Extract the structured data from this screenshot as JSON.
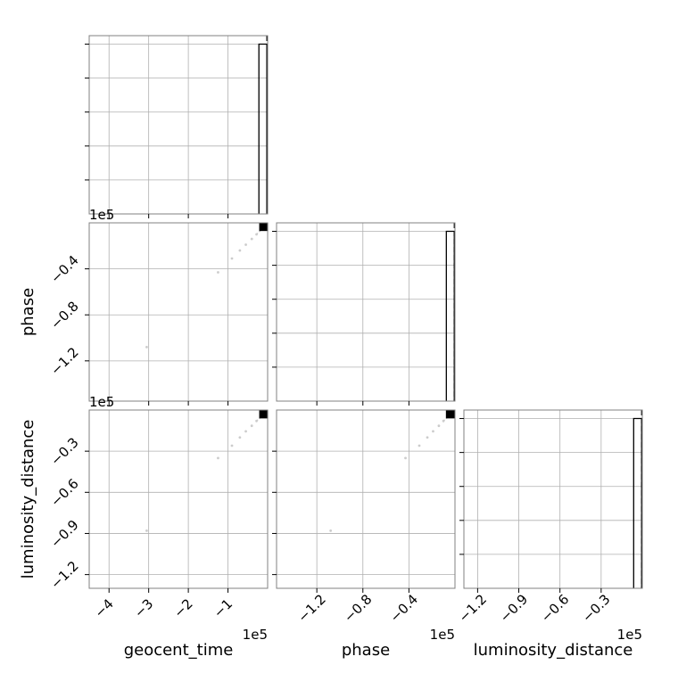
{
  "chart_data": {
    "type": "scatter",
    "description_kind": "corner plot",
    "parameters": [
      "geocent_time",
      "phase",
      "luminosity_distance"
    ],
    "colors": {
      "hist_line": "#000000",
      "grid": "#b0b0b0",
      "scatter": "#cccccc",
      "density_peak": "#000000",
      "axes_edge": "#808080"
    },
    "panels": [
      {
        "id": "hist-geocent_time",
        "kind": "histogram",
        "row": 0,
        "col": 0,
        "xlim": [
          -450000,
          0
        ],
        "ylim": [
          0,
          1.05
        ],
        "x_ticks": [
          -400000,
          -300000,
          -200000,
          -100000
        ],
        "y_ticks": [
          0.2,
          0.4,
          0.6,
          0.8,
          1.0
        ],
        "hist": {
          "edges": [
            -22000,
            -2000
          ],
          "heights": [
            1.0
          ]
        },
        "dashed_lines": [
          -2000
        ],
        "x_offset_label": "1e5",
        "show_x_ticklabels": false
      },
      {
        "id": "scatter-phase-vs-geocent_time",
        "kind": "scatter",
        "row": 1,
        "col": 0,
        "xlim": [
          -450000,
          0
        ],
        "ylim": [
          -155000,
          0
        ],
        "x_ticks": [
          -400000,
          -300000,
          -200000,
          -100000
        ],
        "y_ticks": [
          -40000,
          -80000,
          -120000
        ],
        "y_ticklabels": [
          "−0.4",
          "−0.8",
          "−1.2"
        ],
        "points": [
          [
            -305000,
            -108000
          ],
          [
            -125000,
            -43000
          ],
          [
            -90000,
            -31000
          ],
          [
            -70000,
            -24000
          ],
          [
            -55000,
            -19000
          ],
          [
            -40000,
            -14000
          ],
          [
            -28000,
            -10000
          ]
        ],
        "peak": [
          -10000,
          -4000
        ],
        "x_offset_label": "1e5",
        "show_x_ticklabels": false
      },
      {
        "id": "scatter-luminosity_distance-vs-geocent_time",
        "kind": "scatter",
        "row": 2,
        "col": 0,
        "xlim": [
          -450000,
          0
        ],
        "ylim": [
          -130000,
          0
        ],
        "x_ticks": [
          -400000,
          -300000,
          -200000,
          -100000
        ],
        "x_ticklabels": [
          "−4",
          "−3",
          "−2",
          "−1"
        ],
        "y_ticks": [
          -30000,
          -60000,
          -90000,
          -120000
        ],
        "y_ticklabels": [
          "−0.3",
          "−0.6",
          "−0.9",
          "−1.2"
        ],
        "points": [
          [
            -305000,
            -88000
          ],
          [
            -125000,
            -35000
          ],
          [
            -90000,
            -26000
          ],
          [
            -70000,
            -20000
          ],
          [
            -55000,
            -15500
          ],
          [
            -40000,
            -11500
          ],
          [
            -28000,
            -8000
          ]
        ],
        "peak": [
          -10000,
          -3500
        ],
        "x_offset_label": "1e5"
      },
      {
        "id": "hist-phase",
        "kind": "histogram",
        "row": 1,
        "col": 1,
        "xlim": [
          -155000,
          0
        ],
        "ylim": [
          0,
          1.05
        ],
        "x_ticks": [
          -120000,
          -80000,
          -40000
        ],
        "y_ticks": [
          0.2,
          0.4,
          0.6,
          0.8,
          1.0
        ],
        "hist": {
          "edges": [
            -7500,
            -600
          ],
          "heights": [
            1.0
          ]
        },
        "dashed_lines": [
          -600
        ],
        "show_x_ticklabels": false
      },
      {
        "id": "scatter-luminosity_distance-vs-phase",
        "kind": "scatter",
        "row": 2,
        "col": 1,
        "xlim": [
          -155000,
          0
        ],
        "ylim": [
          -130000,
          0
        ],
        "x_ticks": [
          -120000,
          -80000,
          -40000
        ],
        "x_ticklabels": [
          "−1.2",
          "−0.8",
          "−0.4"
        ],
        "y_ticks": [
          -30000,
          -60000,
          -90000,
          -120000
        ],
        "points": [
          [
            -108000,
            -88000
          ],
          [
            -43000,
            -35000
          ],
          [
            -31000,
            -26000
          ],
          [
            -24000,
            -20000
          ],
          [
            -19000,
            -15500
          ],
          [
            -14000,
            -11500
          ],
          [
            -10000,
            -8000
          ]
        ],
        "peak": [
          -4000,
          -3500
        ],
        "x_offset_label": "1e5",
        "show_y_ticklabels": false
      },
      {
        "id": "hist-luminosity_distance",
        "kind": "histogram",
        "row": 2,
        "col": 2,
        "xlim": [
          -130000,
          0
        ],
        "ylim": [
          0,
          1.05
        ],
        "x_ticks": [
          -120000,
          -90000,
          -60000,
          -30000
        ],
        "x_ticklabels": [
          "−1.2",
          "−0.9",
          "−0.6",
          "−0.3"
        ],
        "y_ticks": [
          0.2,
          0.4,
          0.6,
          0.8,
          1.0
        ],
        "hist": {
          "edges": [
            -6300,
            -500
          ],
          "heights": [
            1.0
          ]
        },
        "dashed_lines": [
          -500
        ],
        "x_offset_label": "1e5"
      }
    ],
    "axis_labels": {
      "x": [
        "geocent_time",
        "phase",
        "luminosity_distance"
      ],
      "y": [
        "phase",
        "luminosity_distance"
      ]
    }
  }
}
